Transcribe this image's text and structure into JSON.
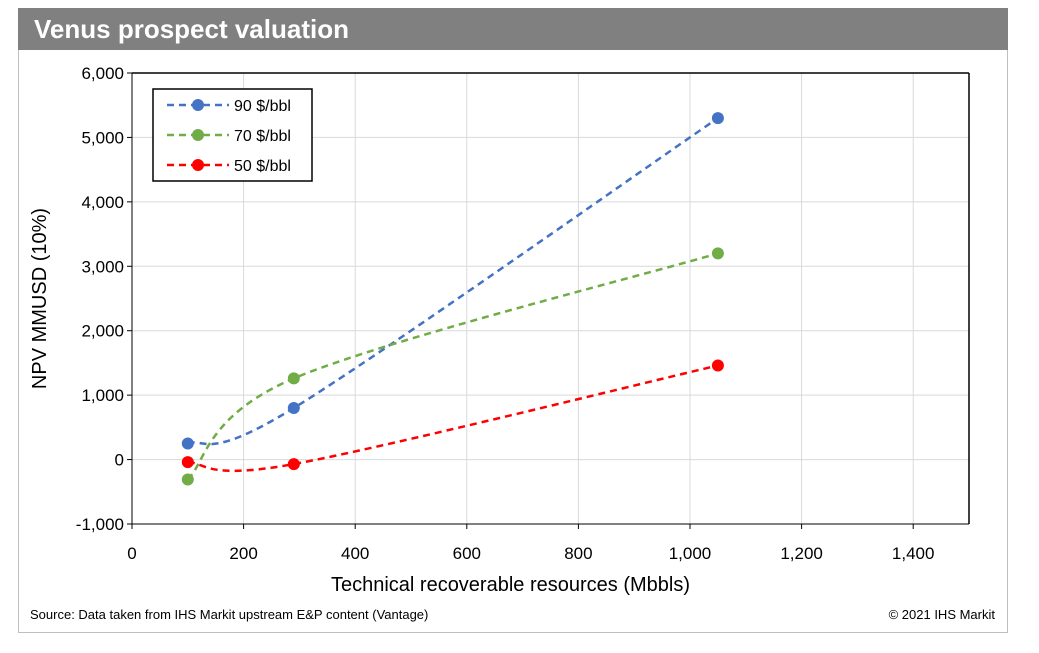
{
  "header": {
    "title": "Venus prospect valuation"
  },
  "footer": {
    "source": "Source: Data taken from IHS Markit upstream E&P content (Vantage)",
    "copyright": "© 2021 IHS Markit"
  },
  "chart_data": {
    "type": "line",
    "title": "Venus prospect valuation",
    "xlabel": "Technical recoverable resources (Mbbls)",
    "ylabel": "NPV MMUSD (10%)",
    "xlim": [
      0,
      1500
    ],
    "ylim": [
      -1000,
      6000
    ],
    "x_ticks": [
      0,
      200,
      400,
      600,
      800,
      1000,
      1200,
      1400
    ],
    "x_tick_labels": [
      "0",
      "200",
      "400",
      "600",
      "800",
      "1,000",
      "1,200",
      "1,400"
    ],
    "y_ticks": [
      -1000,
      0,
      1000,
      2000,
      3000,
      4000,
      5000,
      6000
    ],
    "y_tick_labels": [
      "-1,000",
      "0",
      "1,000",
      "2,000",
      "3,000",
      "4,000",
      "5,000",
      "6,000"
    ],
    "grid": true,
    "line_style": "dashed-smoothed",
    "legend_position": "top-left",
    "series": [
      {
        "name": "90 $/bbl",
        "color": "#4472C4",
        "points": [
          [
            100,
            250
          ],
          [
            290,
            800
          ],
          [
            1050,
            5300
          ]
        ]
      },
      {
        "name": "70 $/bbl",
        "color": "#70AD47",
        "points": [
          [
            100,
            -310
          ],
          [
            290,
            1260
          ],
          [
            1050,
            3200
          ]
        ]
      },
      {
        "name": "50 $/bbl",
        "color": "#FF0000",
        "points": [
          [
            100,
            -40
          ],
          [
            290,
            -70
          ],
          [
            1050,
            1460
          ]
        ]
      }
    ]
  }
}
